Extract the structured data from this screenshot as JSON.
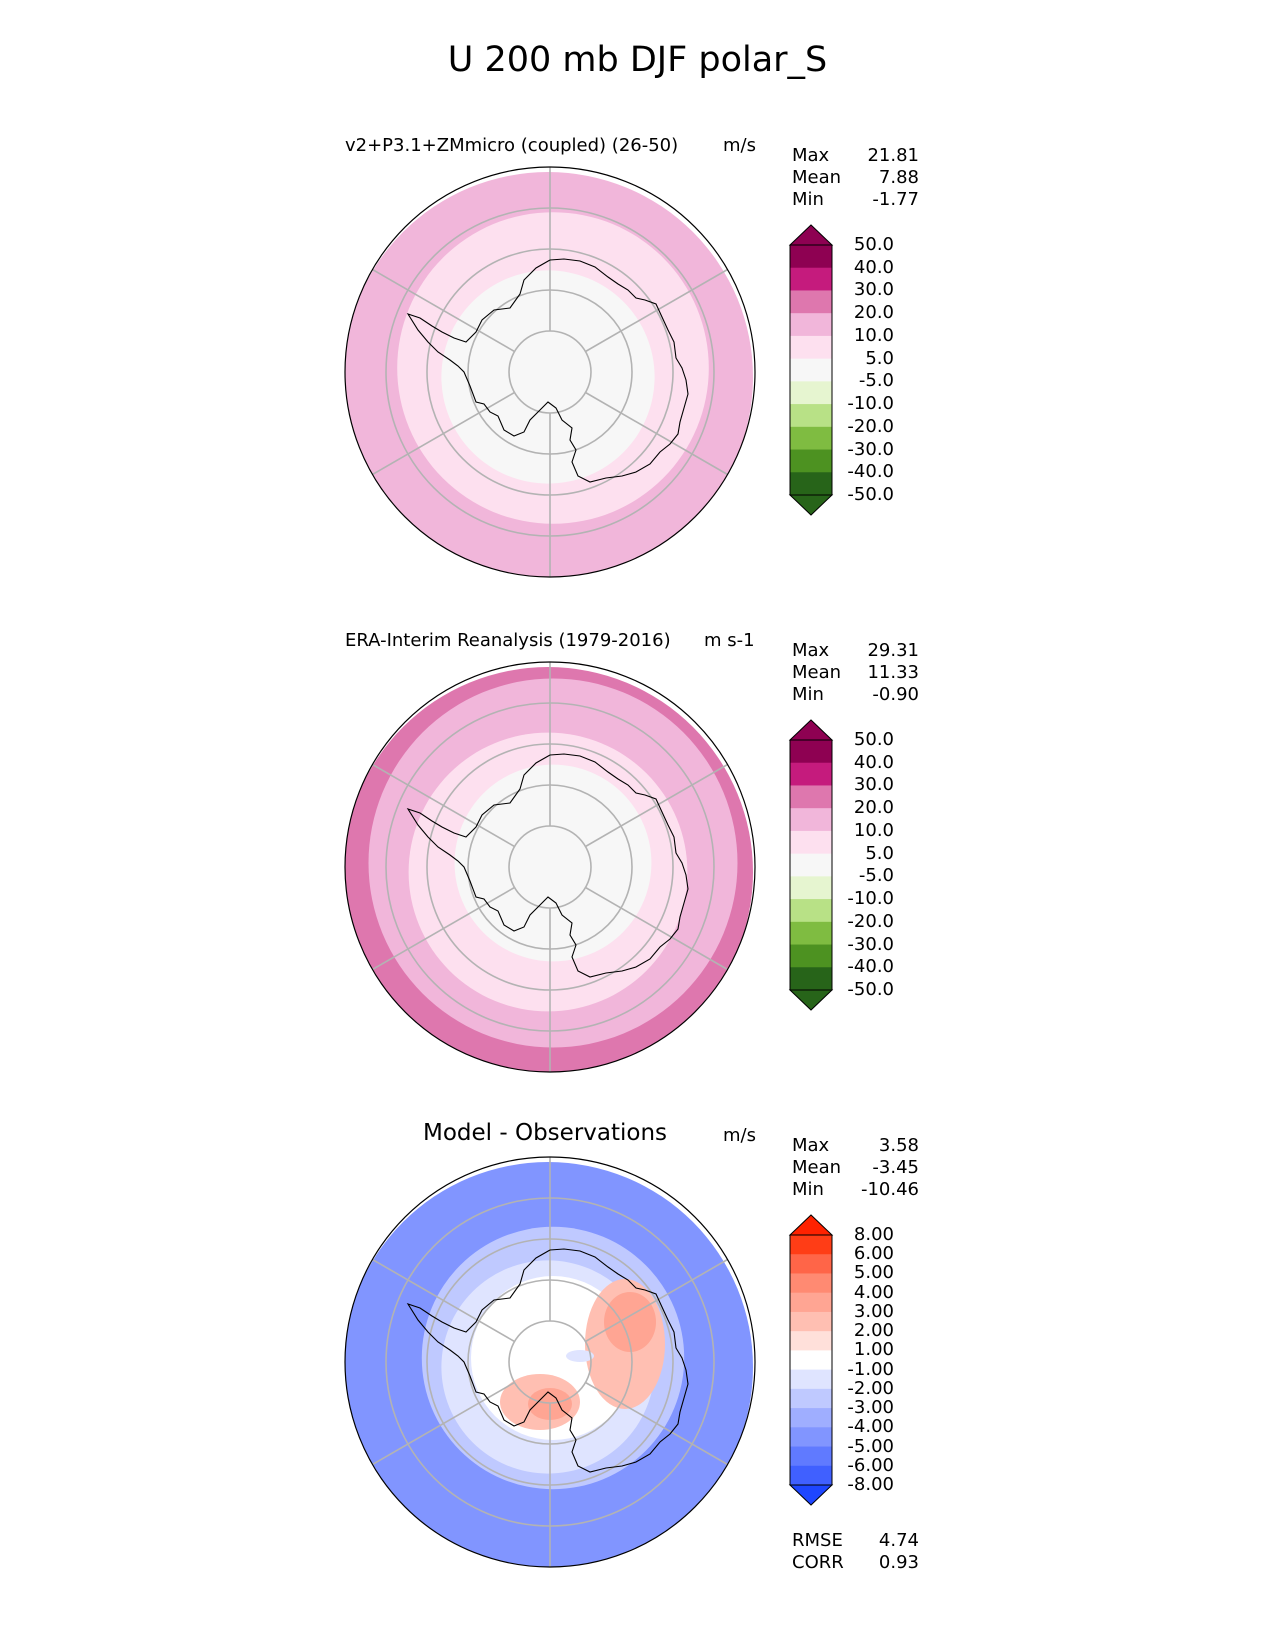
{
  "title": "U 200 mb DJF polar_S",
  "chart_data": [
    {
      "type": "heatmap",
      "projection": "south-polar-stereographic",
      "title": "v2+P3.1+ZMmicro (coupled) (26-50)",
      "units": "m/s",
      "stats": [
        {
          "label": "Max",
          "value": "21.81"
        },
        {
          "label": "Mean",
          "value": "7.88"
        },
        {
          "label": "Min",
          "value": "-1.77"
        }
      ],
      "levels": [
        "50.0",
        "40.0",
        "30.0",
        "20.0",
        "10.0",
        "5.0",
        "-5.0",
        "-10.0",
        "-20.0",
        "-30.0",
        "-40.0",
        "-50.0"
      ],
      "colors": [
        "#8e0152",
        "#c51b7d",
        "#de77ae",
        "#f1b6da",
        "#fde0ef",
        "#f7f7f7",
        "#e6f5d0",
        "#b8e186",
        "#7fbc41",
        "#4d9221",
        "#276419"
      ],
      "extend_max_color": "#8e0152",
      "extend_min_color": "#276419",
      "field_bands": [
        {
          "lat_range": [
            -90,
            -64
          ],
          "value_range": [
            -5,
            5
          ]
        },
        {
          "lat_range": [
            -64,
            -52
          ],
          "value_range": [
            5,
            10
          ]
        },
        {
          "lat_range": [
            -52,
            -40
          ],
          "value_range": [
            10,
            20
          ]
        }
      ]
    },
    {
      "type": "heatmap",
      "projection": "south-polar-stereographic",
      "title": "ERA-Interim Reanalysis (1979-2016)",
      "units": "m s-1",
      "stats": [
        {
          "label": "Max",
          "value": "29.31"
        },
        {
          "label": "Mean",
          "value": "11.33"
        },
        {
          "label": "Min",
          "value": "-0.90"
        }
      ],
      "levels": [
        "50.0",
        "40.0",
        "30.0",
        "20.0",
        "10.0",
        "5.0",
        "-5.0",
        "-10.0",
        "-20.0",
        "-30.0",
        "-40.0",
        "-50.0"
      ],
      "colors": [
        "#8e0152",
        "#c51b7d",
        "#de77ae",
        "#f1b6da",
        "#fde0ef",
        "#f7f7f7",
        "#e6f5d0",
        "#b8e186",
        "#7fbc41",
        "#4d9221",
        "#276419"
      ],
      "extend_max_color": "#8e0152",
      "extend_min_color": "#276419",
      "field_bands": [
        {
          "lat_range": [
            -90,
            -66
          ],
          "value_range": [
            -5,
            5
          ]
        },
        {
          "lat_range": [
            -66,
            -56
          ],
          "value_range": [
            5,
            10
          ]
        },
        {
          "lat_range": [
            -56,
            -45
          ],
          "value_range": [
            10,
            20
          ]
        },
        {
          "lat_range": [
            -45,
            -40
          ],
          "value_range": [
            20,
            30
          ]
        }
      ]
    },
    {
      "type": "heatmap",
      "projection": "south-polar-stereographic",
      "title": "Model - Observations",
      "units": "m/s",
      "stats": [
        {
          "label": "Max",
          "value": "3.58"
        },
        {
          "label": "Mean",
          "value": "-3.45"
        },
        {
          "label": "Min",
          "value": "-10.46"
        }
      ],
      "metrics": [
        {
          "label": "RMSE",
          "value": "4.74"
        },
        {
          "label": "CORR",
          "value": "0.93"
        }
      ],
      "levels": [
        "8.00",
        "6.00",
        "5.00",
        "4.00",
        "3.00",
        "2.00",
        "1.00",
        "-1.00",
        "-2.00",
        "-3.00",
        "-4.00",
        "-5.00",
        "-6.00",
        "-8.00"
      ],
      "colors": [
        "#ff3d16",
        "#ff6548",
        "#ff8a72",
        "#ffa593",
        "#ffbfb2",
        "#ffe0da",
        "#ffffff",
        "#dfe4ff",
        "#bfc9ff",
        "#9faeff",
        "#8195ff",
        "#607aff",
        "#4060ff"
      ],
      "extend_max_color": "#ff2200",
      "extend_min_color": "#1e46ff",
      "field_bands": [
        {
          "lat_range": [
            -90,
            -70
          ],
          "value_range": [
            -1,
            1
          ]
        },
        {
          "lat_range": [
            -70,
            -64
          ],
          "value_range": [
            -2,
            -1
          ]
        },
        {
          "lat_range": [
            -64,
            -58
          ],
          "value_range": [
            -4,
            -2
          ]
        },
        {
          "lat_range": [
            -58,
            -40
          ],
          "value_range": [
            -6,
            -4
          ]
        }
      ]
    }
  ]
}
